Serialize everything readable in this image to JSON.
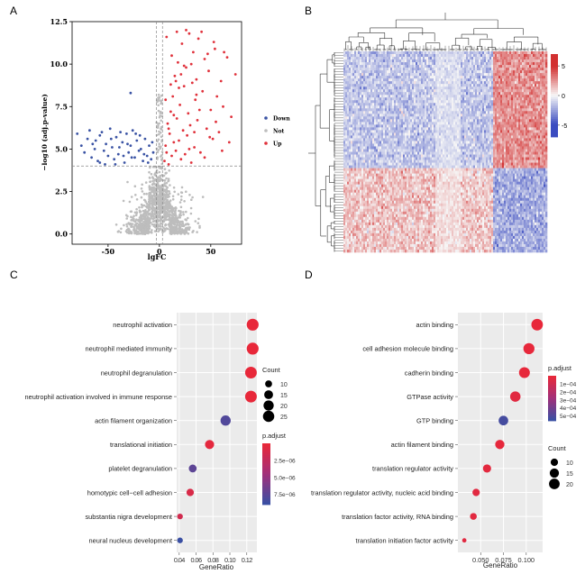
{
  "panels": {
    "a": "A",
    "b": "B",
    "c": "C",
    "d": "D"
  },
  "chart_data": [
    {
      "id": "A",
      "type": "scatter",
      "subtype": "volcano",
      "xlabel": "lgFC",
      "ylabel": "−log10 (adj.p-value)",
      "xlim": [
        -85,
        80
      ],
      "ylim": [
        -0.6,
        12.5
      ],
      "xticks": [
        -50,
        0,
        50
      ],
      "xtick_labels": [
        "-50",
        "0",
        "50"
      ],
      "yticks": [
        0,
        2.5,
        5,
        7.5,
        10,
        12.5
      ],
      "ytick_labels": [
        "0.0",
        "2.5",
        "5.0",
        "7.5",
        "10.0",
        "12.5"
      ],
      "thresholds": {
        "x": [
          -3,
          3
        ],
        "y": 4
      },
      "legend": [
        {
          "name": "Down",
          "color": "#3a53a4"
        },
        {
          "name": "Not",
          "color": "#bdbdbd"
        },
        {
          "name": "Up",
          "color": "#e0313b"
        }
      ],
      "series": [
        {
          "name": "Down",
          "points": [
            [
              -80,
              5.9
            ],
            [
              -76,
              5.2
            ],
            [
              -73,
              4.8
            ],
            [
              -70,
              5.6
            ],
            [
              -68,
              6.1
            ],
            [
              -66,
              4.5
            ],
            [
              -63,
              5.0
            ],
            [
              -60,
              4.3
            ],
            [
              -58,
              5.8
            ],
            [
              -56,
              6.0
            ],
            [
              -54,
              4.9
            ],
            [
              -52,
              5.3
            ],
            [
              -50,
              4.6
            ],
            [
              -48,
              6.2
            ],
            [
              -46,
              5.1
            ],
            [
              -44,
              4.4
            ],
            [
              -42,
              5.7
            ],
            [
              -40,
              4.7
            ],
            [
              -38,
              6.0
            ],
            [
              -36,
              5.4
            ],
            [
              -34,
              4.2
            ],
            [
              -32,
              5.9
            ],
            [
              -30,
              4.8
            ],
            [
              -28,
              5.2
            ],
            [
              -26,
              6.1
            ],
            [
              -24,
              4.5
            ],
            [
              -22,
              5.5
            ],
            [
              -20,
              4.9
            ],
            [
              -18,
              5.0
            ],
            [
              -16,
              4.3
            ],
            [
              -14,
              5.6
            ],
            [
              -12,
              4.6
            ],
            [
              -10,
              5.2
            ],
            [
              -8,
              4.4
            ],
            [
              -6,
              4.8
            ],
            [
              -62,
              5.5
            ],
            [
              -47,
              5.6
            ],
            [
              -35,
              4.6
            ],
            [
              -27,
              4.5
            ],
            [
              -19,
              5.8
            ],
            [
              -11,
              4.2
            ],
            [
              -58,
              4.2
            ],
            [
              -43,
              4.1
            ],
            [
              -31,
              5.3
            ],
            [
              -23,
              5.9
            ],
            [
              -15,
              4.7
            ],
            [
              -7,
              5.4
            ],
            [
              -65,
              5.3
            ],
            [
              -53,
              4.1
            ],
            [
              -39,
              5.1
            ],
            [
              -28,
              8.3
            ]
          ]
        },
        {
          "name": "Up",
          "points": [
            [
              5,
              4.3
            ],
            [
              6,
              5.2
            ],
            [
              7,
              4.8
            ],
            [
              8,
              6.5
            ],
            [
              9,
              4.1
            ],
            [
              10,
              5.9
            ],
            [
              11,
              7.2
            ],
            [
              12,
              4.6
            ],
            [
              13,
              8.1
            ],
            [
              14,
              5.4
            ],
            [
              15,
              9.3
            ],
            [
              16,
              4.9
            ],
            [
              17,
              6.8
            ],
            [
              18,
              10.1
            ],
            [
              19,
              5.5
            ],
            [
              20,
              7.6
            ],
            [
              21,
              4.4
            ],
            [
              22,
              11.2
            ],
            [
              23,
              6.1
            ],
            [
              24,
              8.7
            ],
            [
              25,
              4.7
            ],
            [
              26,
              9.8
            ],
            [
              27,
              5.8
            ],
            [
              28,
              7.1
            ],
            [
              29,
              11.8
            ],
            [
              30,
              6.4
            ],
            [
              31,
              4.2
            ],
            [
              32,
              8.9
            ],
            [
              33,
              10.7
            ],
            [
              34,
              5.1
            ],
            [
              35,
              7.9
            ],
            [
              36,
              9.1
            ],
            [
              37,
              6.7
            ],
            [
              38,
              11.5
            ],
            [
              40,
              4.8
            ],
            [
              42,
              8.4
            ],
            [
              44,
              10.3
            ],
            [
              46,
              6.2
            ],
            [
              48,
              9.6
            ],
            [
              50,
              7.3
            ],
            [
              52,
              5.6
            ],
            [
              54,
              10.9
            ],
            [
              56,
              8.1
            ],
            [
              58,
              6.0
            ],
            [
              60,
              9.0
            ],
            [
              62,
              7.5
            ],
            [
              66,
              10.4
            ],
            [
              70,
              6.9
            ],
            [
              74,
              9.4
            ],
            [
              7,
              11.6
            ],
            [
              12,
              10.5
            ],
            [
              17,
              11.9
            ],
            [
              21,
              9.4
            ],
            [
              26,
              12.0
            ],
            [
              31,
              10.0
            ],
            [
              36,
              8.2
            ],
            [
              41,
              11.9
            ],
            [
              47,
              10.6
            ],
            [
              53,
              11.3
            ],
            [
              63,
              10.7
            ],
            [
              9,
              6.2
            ],
            [
              14,
              7.0
            ],
            [
              19,
              8.6
            ],
            [
              24,
              9.9
            ],
            [
              29,
              5.0
            ],
            [
              34,
              6.0
            ],
            [
              39,
              7.3
            ],
            [
              44,
              4.5
            ],
            [
              49,
              5.7
            ],
            [
              55,
              6.6
            ],
            [
              61,
              4.9
            ],
            [
              68,
              5.4
            ],
            [
              16,
              9.0
            ],
            [
              11,
              8.8
            ],
            [
              6,
              7.9
            ]
          ]
        }
      ]
    },
    {
      "id": "B",
      "type": "heatmap",
      "colorbar": {
        "ticks": [
          5,
          0,
          -5
        ],
        "tick_labels": [
          "5",
          "0",
          "-5"
        ],
        "range": [
          -7,
          7
        ]
      }
    },
    {
      "id": "C",
      "type": "scatter",
      "subtype": "dotplot",
      "xlabel": "GeneRatio",
      "xlim": [
        0.037,
        0.132
      ],
      "xticks": [
        0.04,
        0.06,
        0.08,
        0.1,
        0.12
      ],
      "xtick_labels": [
        "0.04",
        "0.06",
        "0.08",
        "0.10",
        "0.12"
      ],
      "categories": [
        "neutrophil activation",
        "neutrophil mediated immunity",
        "neutrophil degranulation",
        "neutrophil activation involved in immune response",
        "actin filament organization",
        "translational initiation",
        "platelet degranulation",
        "homotypic cell−cell adhesion",
        "substantia nigra development",
        "neural nucleus development"
      ],
      "gene_ratio": [
        0.127,
        0.127,
        0.125,
        0.125,
        0.095,
        0.076,
        0.056,
        0.053,
        0.041,
        0.041
      ],
      "count": [
        28,
        28,
        27,
        27,
        20,
        16,
        12,
        11,
        8,
        8
      ],
      "p_adjust": [
        1e-09,
        1e-09,
        1e-08,
        2e-08,
        8e-06,
        2.5e-07,
        7.5e-06,
        1e-06,
        1.5e-06,
        9e-06
      ],
      "size_legend": {
        "title": "Count",
        "values": [
          10,
          15,
          20,
          25
        ],
        "labels": [
          "10",
          "15",
          "20",
          "25"
        ]
      },
      "color_legend": {
        "title": "p.adjust",
        "ticks": [
          2.5e-06,
          5e-06,
          7.5e-06
        ],
        "labels": [
          "2.5e−06",
          "5.0e−06",
          "7.5e−06"
        ],
        "range": [
          0,
          9e-06
        ]
      }
    },
    {
      "id": "D",
      "type": "scatter",
      "subtype": "dotplot",
      "xlabel": "GeneRatio",
      "xlim": [
        0.025,
        0.118
      ],
      "xticks": [
        0.05,
        0.075,
        0.1
      ],
      "xtick_labels": [
        "0.050",
        "0.075",
        "0.100"
      ],
      "categories": [
        "actin binding",
        "cell adhesion molecule binding",
        "cadherin binding",
        "GTPase activity",
        "GTP binding",
        "actin filament binding",
        "translation regulator activity",
        "translation regulator activity, nucleic acid binding",
        "translation factor activity, RNA binding",
        "translation initiation factor activity"
      ],
      "gene_ratio": [
        0.112,
        0.103,
        0.098,
        0.088,
        0.075,
        0.071,
        0.057,
        0.045,
        0.042,
        0.032
      ],
      "count": [
        24,
        22,
        21,
        19,
        16,
        15,
        12,
        10,
        9,
        7
      ],
      "p_adjust": [
        2e-06,
        5e-06,
        6e-06,
        3e-05,
        0.00053,
        1e-05,
        2e-05,
        3e-05,
        2.5e-05,
        3e-05
      ],
      "size_legend": {
        "title": "Count",
        "values": [
          10,
          15,
          20
        ],
        "labels": [
          "10",
          "15",
          "20"
        ]
      },
      "color_legend": {
        "title": "p.adjust",
        "ticks": [
          0.0001,
          0.0002,
          0.0003,
          0.0004,
          0.0005
        ],
        "labels": [
          "1e−04",
          "2e−04",
          "3e−04",
          "4e−04",
          "5e−04"
        ],
        "range": [
          0,
          0.00056
        ]
      }
    }
  ]
}
